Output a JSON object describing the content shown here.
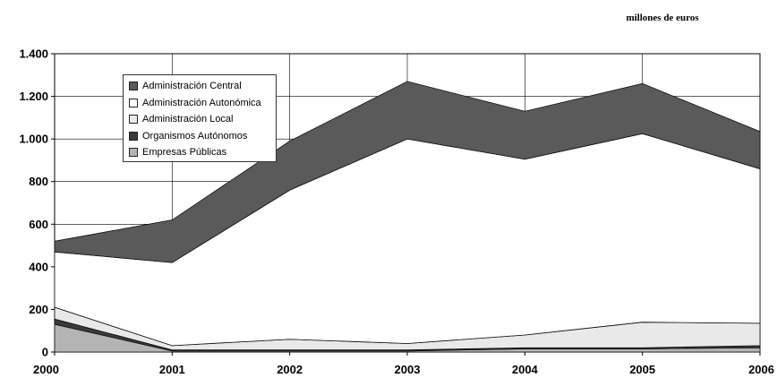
{
  "unit_label": "millones de euros",
  "chart_data": {
    "type": "area",
    "stacked": true,
    "x": [
      "2000",
      "2001",
      "2002",
      "2003",
      "2004",
      "2005",
      "2006"
    ],
    "ylim": [
      0,
      1400
    ],
    "yticks": [
      0,
      200,
      400,
      600,
      800,
      1000,
      1200,
      1400
    ],
    "ytick_labels": [
      "0",
      "200",
      "400",
      "600",
      "800",
      "1.000",
      "1.200",
      "1.400"
    ],
    "grid": true,
    "legend_position": "top-left",
    "series": [
      {
        "name": "Empresas Públicas",
        "color": "#b4b4b4",
        "values": [
          130,
          5,
          5,
          5,
          15,
          15,
          20
        ]
      },
      {
        "name": "Organismos Autónomos",
        "color": "#3a3a3a",
        "values": [
          25,
          5,
          5,
          5,
          5,
          5,
          10
        ]
      },
      {
        "name": "Administración Local",
        "color": "#e9e9e9",
        "values": [
          55,
          20,
          50,
          30,
          60,
          120,
          105
        ]
      },
      {
        "name": "Administración Autonómica",
        "color": "#ffffff",
        "values": [
          260,
          390,
          700,
          960,
          825,
          885,
          725
        ]
      },
      {
        "name": "Administración Central",
        "color": "#5a5a5a",
        "values": [
          50,
          200,
          230,
          270,
          225,
          235,
          175
        ]
      }
    ],
    "legend_order": [
      "Administración Central",
      "Administración Autonómica",
      "Administración Local",
      "Organismos Autónomos",
      "Empresas Públicas"
    ]
  }
}
